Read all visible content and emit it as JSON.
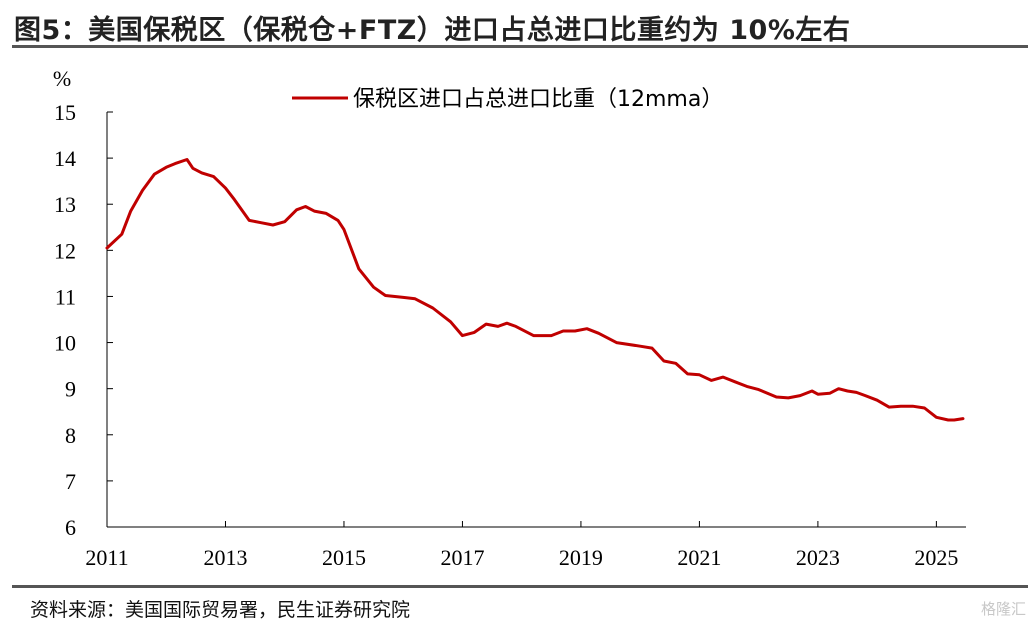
{
  "header": {
    "title": "图5：美国保税区（保税仓+FTZ）进口占总进口比重约为 10%左右"
  },
  "footer": {
    "source": "资料来源：美国国际贸易署，民生证券研究院",
    "watermark": "格隆汇"
  },
  "colors": {
    "series": "#c00000",
    "rule": "#555555"
  },
  "chart_data": {
    "type": "line",
    "y_unit": "%",
    "ylim": [
      6,
      15
    ],
    "yticks": [
      "6",
      "7",
      "8",
      "9",
      "10",
      "11",
      "12",
      "13",
      "14",
      "15"
    ],
    "xlim": [
      2011.0,
      2025.5
    ],
    "xticks": [
      "2011",
      "2013",
      "2015",
      "2017",
      "2019",
      "2021",
      "2023",
      "2025"
    ],
    "grid": false,
    "legend_position": "top-center",
    "series": [
      {
        "name": "保税区进口占总进口比重（12mma）",
        "color": "#c00000",
        "x": [
          2011.0,
          2011.25,
          2011.4,
          2011.6,
          2011.8,
          2012.0,
          2012.15,
          2012.35,
          2012.45,
          2012.6,
          2012.8,
          2013.0,
          2013.15,
          2013.4,
          2013.6,
          2013.8,
          2014.0,
          2014.2,
          2014.35,
          2014.5,
          2014.7,
          2014.9,
          2015.0,
          2015.25,
          2015.5,
          2015.7,
          2016.0,
          2016.2,
          2016.5,
          2016.8,
          2017.0,
          2017.2,
          2017.4,
          2017.6,
          2017.75,
          2017.9,
          2018.2,
          2018.5,
          2018.7,
          2018.9,
          2019.1,
          2019.3,
          2019.6,
          2020.0,
          2020.2,
          2020.4,
          2020.6,
          2020.8,
          2021.0,
          2021.2,
          2021.4,
          2021.6,
          2021.8,
          2022.0,
          2022.3,
          2022.5,
          2022.7,
          2022.9,
          2023.0,
          2023.2,
          2023.35,
          2023.5,
          2023.65,
          2023.8,
          2024.0,
          2024.2,
          2024.4,
          2024.6,
          2024.8,
          2025.0,
          2025.2,
          2025.3,
          2025.45
        ],
        "values": [
          12.05,
          12.35,
          12.85,
          13.3,
          13.65,
          13.8,
          13.88,
          13.97,
          13.78,
          13.68,
          13.6,
          13.35,
          13.1,
          12.65,
          12.6,
          12.55,
          12.62,
          12.88,
          12.95,
          12.85,
          12.8,
          12.65,
          12.45,
          11.6,
          11.2,
          11.02,
          10.98,
          10.95,
          10.75,
          10.45,
          10.15,
          10.22,
          10.4,
          10.35,
          10.42,
          10.35,
          10.15,
          10.15,
          10.25,
          10.25,
          10.3,
          10.2,
          10.0,
          9.92,
          9.88,
          9.6,
          9.55,
          9.32,
          9.3,
          9.18,
          9.25,
          9.15,
          9.05,
          8.98,
          8.82,
          8.8,
          8.85,
          8.95,
          8.88,
          8.9,
          9.0,
          8.95,
          8.92,
          8.85,
          8.75,
          8.6,
          8.62,
          8.62,
          8.58,
          8.38,
          8.32,
          8.32,
          8.35
        ]
      }
    ]
  }
}
